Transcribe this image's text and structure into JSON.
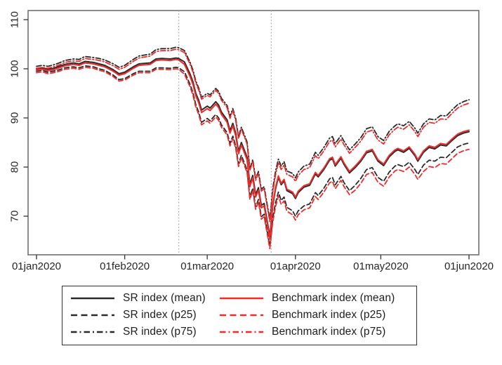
{
  "chart_data": {
    "type": "line",
    "title": "",
    "xlabel": "",
    "ylabel": "",
    "x_axis": {
      "unit": "date",
      "min_day": 0,
      "max_day": 152,
      "ticks": [
        {
          "day": 0,
          "label": "01jan2020"
        },
        {
          "day": 31,
          "label": "01feb2020"
        },
        {
          "day": 60,
          "label": "01mar2020"
        },
        {
          "day": 91,
          "label": "01apr2020"
        },
        {
          "day": 121,
          "label": "01may2020"
        },
        {
          "day": 152,
          "label": "01jun2020"
        }
      ]
    },
    "y_axis": {
      "min": 62,
      "max": 112,
      "ticks": [
        {
          "value": 70,
          "label": "70"
        },
        {
          "value": 80,
          "label": "80"
        },
        {
          "value": 90,
          "label": "90"
        },
        {
          "value": 100,
          "label": "100"
        },
        {
          "value": 110,
          "label": "110"
        }
      ]
    },
    "event_lines": {
      "days": [
        50,
        82.5
      ],
      "style": "dotted",
      "color": "#a8a8a8"
    },
    "legend_position": "bottom-box",
    "grid": false,
    "colors": {
      "sr": "#2a2a2a",
      "benchmark": "#ee2b2b",
      "plot_border": "#707070",
      "tick": "#3f3f3f",
      "label": "#262626"
    },
    "days": [
      0,
      2,
      4,
      6,
      8,
      10,
      13,
      15,
      17,
      20,
      22,
      24,
      27,
      29,
      31,
      34,
      36,
      38,
      40,
      42,
      44,
      47,
      49,
      50,
      52,
      54,
      55,
      56,
      57,
      58,
      60,
      61,
      63,
      64,
      65,
      67,
      68,
      69,
      70,
      71,
      72,
      74,
      75,
      76,
      77,
      78,
      79,
      80,
      82,
      83,
      84,
      85,
      86,
      87,
      88,
      90,
      91,
      92,
      94,
      96,
      98,
      99,
      101,
      103,
      104,
      105,
      107,
      108,
      110,
      112,
      114,
      116,
      118,
      120,
      122,
      124,
      126,
      127,
      129,
      131,
      133,
      134,
      136,
      138,
      140,
      142,
      144,
      146,
      148,
      150,
      152
    ],
    "series": [
      {
        "name": "SR index (mean)",
        "color": "#2a2a2a",
        "dash": "solid",
        "width": 2,
        "values": [
          100.0,
          100.2,
          99.9,
          100.1,
          100.5,
          100.9,
          101.2,
          101.0,
          101.5,
          101.3,
          101.0,
          100.7,
          99.8,
          99.0,
          99.3,
          100.4,
          101.0,
          101.1,
          101.2,
          102.0,
          102.1,
          102.0,
          102.2,
          102.1,
          101.4,
          98.9,
          97.3,
          95.0,
          93.6,
          91.6,
          92.4,
          92.0,
          93.3,
          92.6,
          91.2,
          89.6,
          87.4,
          88.9,
          86.9,
          83.2,
          85.0,
          82.0,
          76.5,
          78.3,
          74.4,
          75.8,
          72.2,
          72.6,
          65.9,
          72.0,
          75.5,
          77.9,
          76.4,
          77.2,
          75.2,
          74.6,
          73.6,
          74.8,
          75.9,
          76.3,
          78.6,
          78.0,
          79.5,
          81.4,
          81.7,
          80.2,
          81.8,
          80.6,
          78.8,
          79.9,
          81.2,
          82.9,
          83.3,
          81.2,
          80.3,
          82.1,
          83.2,
          83.5,
          83.0,
          83.8,
          82.3,
          81.2,
          83.0,
          84.0,
          83.7,
          84.5,
          84.3,
          85.4,
          86.4,
          86.9,
          87.2
        ]
      },
      {
        "name": "SR index (p25)",
        "color": "#2a2a2a",
        "dash": "dash",
        "width": 1.8,
        "values": [
          99.5,
          99.7,
          99.3,
          99.5,
          99.8,
          100.2,
          100.4,
          100.2,
          100.6,
          100.4,
          100.0,
          99.7,
          98.7,
          97.8,
          98.0,
          99.0,
          99.5,
          99.5,
          99.5,
          100.2,
          100.2,
          100.1,
          100.3,
          100.2,
          99.4,
          96.8,
          95.1,
          92.7,
          91.2,
          89.1,
          89.9,
          89.4,
          90.7,
          90.0,
          88.6,
          87.0,
          84.8,
          86.3,
          84.3,
          80.6,
          82.4,
          79.4,
          73.9,
          75.7,
          71.9,
          73.4,
          69.9,
          70.4,
          63.9,
          69.5,
          72.7,
          74.9,
          73.2,
          73.9,
          71.8,
          71.1,
          70.0,
          71.1,
          72.1,
          72.5,
          74.8,
          74.2,
          75.7,
          77.6,
          77.9,
          76.4,
          78.1,
          76.9,
          75.2,
          76.3,
          77.7,
          79.5,
          79.9,
          77.9,
          77.1,
          79.0,
          80.2,
          80.5,
          80.1,
          81.0,
          79.5,
          78.5,
          80.4,
          81.4,
          81.2,
          82.0,
          81.9,
          83.0,
          84.1,
          84.6,
          84.9
        ]
      },
      {
        "name": "SR index (p75)",
        "color": "#2a2a2a",
        "dash": "dashdot",
        "width": 1.8,
        "values": [
          100.5,
          100.7,
          100.5,
          100.8,
          101.2,
          101.7,
          102.0,
          101.9,
          102.5,
          102.3,
          102.1,
          101.8,
          101.0,
          100.3,
          100.7,
          101.9,
          102.6,
          102.8,
          103.0,
          103.9,
          104.1,
          104.1,
          104.4,
          104.3,
          103.7,
          101.3,
          99.7,
          97.5,
          96.1,
          94.2,
          95.0,
          94.7,
          96.0,
          95.4,
          94.0,
          92.5,
          90.3,
          91.9,
          89.9,
          86.2,
          88.1,
          85.1,
          79.7,
          81.5,
          77.7,
          79.1,
          75.5,
          76.0,
          69.3,
          75.5,
          79.1,
          81.6,
          80.2,
          81.1,
          79.2,
          78.7,
          77.8,
          79.0,
          80.2,
          80.6,
          83.0,
          82.4,
          84.0,
          85.9,
          86.2,
          84.8,
          86.4,
          85.3,
          83.5,
          84.7,
          86.0,
          87.8,
          88.2,
          86.2,
          85.4,
          87.3,
          88.4,
          88.8,
          88.4,
          89.3,
          87.9,
          86.9,
          88.8,
          89.8,
          89.6,
          90.5,
          90.4,
          91.6,
          92.7,
          93.3,
          93.7
        ]
      },
      {
        "name": "Benchmark index (mean)",
        "color": "#ee2b2b",
        "dash": "solid",
        "width": 2,
        "values": [
          99.7,
          99.9,
          99.6,
          99.8,
          100.2,
          100.6,
          100.9,
          100.7,
          101.2,
          101.0,
          100.7,
          100.4,
          99.5,
          98.7,
          99.0,
          100.1,
          100.7,
          100.8,
          100.9,
          101.7,
          101.8,
          101.7,
          101.9,
          101.8,
          100.9,
          98.4,
          96.8,
          94.5,
          93.1,
          91.1,
          91.9,
          91.5,
          92.8,
          92.1,
          90.7,
          89.1,
          86.9,
          88.4,
          86.4,
          82.7,
          84.5,
          81.5,
          76.0,
          77.8,
          73.9,
          75.3,
          71.7,
          72.1,
          65.4,
          72.3,
          75.8,
          78.2,
          76.7,
          77.5,
          75.5,
          74.9,
          73.9,
          75.1,
          76.2,
          76.6,
          78.9,
          78.3,
          79.8,
          81.7,
          82.0,
          80.5,
          82.1,
          80.9,
          79.1,
          80.2,
          81.5,
          83.2,
          83.6,
          81.5,
          80.6,
          82.4,
          83.5,
          83.8,
          83.3,
          84.1,
          82.6,
          81.5,
          83.3,
          84.3,
          84.0,
          84.8,
          84.6,
          85.7,
          86.7,
          87.2,
          87.5
        ]
      },
      {
        "name": "Benchmark index (p25)",
        "color": "#ee2b2b",
        "dash": "dash",
        "width": 1.8,
        "values": [
          99.2,
          99.4,
          99.0,
          99.2,
          99.5,
          99.9,
          100.1,
          99.9,
          100.3,
          100.1,
          99.7,
          99.4,
          98.4,
          97.5,
          97.7,
          98.7,
          99.2,
          99.2,
          99.2,
          99.9,
          99.9,
          99.8,
          100.0,
          99.9,
          98.9,
          96.3,
          94.6,
          92.2,
          90.7,
          88.6,
          89.4,
          88.9,
          90.2,
          89.5,
          88.1,
          86.5,
          84.3,
          85.8,
          83.8,
          80.1,
          81.9,
          78.9,
          73.4,
          75.2,
          71.4,
          72.9,
          69.4,
          69.9,
          63.4,
          68.7,
          71.9,
          74.1,
          72.4,
          73.1,
          71.0,
          70.3,
          69.2,
          70.3,
          71.3,
          71.7,
          74.0,
          73.4,
          74.9,
          76.8,
          77.1,
          75.6,
          77.3,
          76.1,
          74.4,
          75.3,
          76.7,
          78.5,
          78.9,
          76.9,
          76.1,
          78.0,
          79.2,
          79.5,
          79.1,
          80.0,
          78.5,
          77.5,
          79.1,
          80.1,
          79.9,
          80.7,
          80.6,
          81.7,
          82.8,
          83.3,
          83.6
        ]
      },
      {
        "name": "Benchmark index (p75)",
        "color": "#ee2b2b",
        "dash": "dashdot",
        "width": 1.8,
        "values": [
          100.1,
          100.3,
          100.1,
          100.4,
          100.8,
          101.3,
          101.6,
          101.5,
          102.1,
          101.9,
          101.7,
          101.4,
          100.6,
          99.9,
          100.3,
          101.5,
          102.2,
          102.4,
          102.6,
          103.5,
          103.7,
          103.7,
          104.0,
          103.9,
          103.3,
          100.9,
          99.3,
          97.1,
          95.7,
          93.8,
          94.6,
          94.3,
          95.6,
          95.0,
          93.6,
          92.1,
          89.9,
          91.5,
          89.5,
          85.8,
          87.7,
          84.7,
          79.3,
          81.1,
          77.3,
          78.7,
          75.1,
          75.6,
          68.9,
          74.8,
          78.4,
          80.9,
          79.5,
          80.4,
          78.5,
          78.0,
          77.1,
          78.3,
          79.5,
          79.9,
          82.3,
          81.7,
          83.3,
          85.2,
          85.5,
          84.1,
          85.7,
          84.6,
          82.8,
          84.0,
          85.3,
          87.1,
          87.5,
          85.5,
          84.7,
          86.6,
          87.7,
          88.1,
          87.7,
          88.6,
          87.2,
          86.2,
          88.1,
          89.1,
          88.9,
          89.8,
          89.7,
          90.9,
          92.0,
          92.6,
          93.0
        ]
      }
    ]
  },
  "legend": {
    "order_note": "two columns: SR series left, Benchmark series right"
  }
}
